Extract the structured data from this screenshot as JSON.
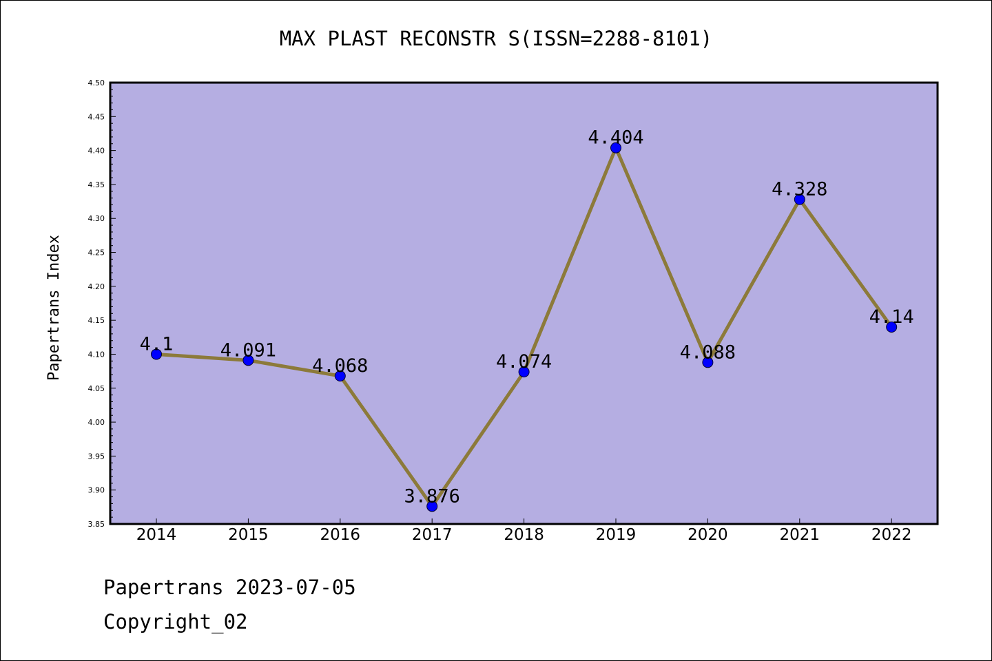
{
  "chart_data": {
    "type": "line",
    "title": "MAX PLAST RECONSTR S(ISSN=2288-8101)",
    "xlabel": "",
    "ylabel": "Papertrans Index",
    "categories": [
      "2014",
      "2015",
      "2016",
      "2017",
      "2018",
      "2019",
      "2020",
      "2021",
      "2022"
    ],
    "values": [
      4.1,
      4.091,
      4.068,
      3.876,
      4.074,
      4.404,
      4.088,
      4.328,
      4.14
    ],
    "value_labels": [
      "4.1",
      "4.091",
      "4.068",
      "3.876",
      "4.074",
      "4.404",
      "4.088",
      "4.328",
      "4.14"
    ],
    "ylim": [
      3.85,
      4.5
    ],
    "yticks": [
      "3.85",
      "3.90",
      "3.95",
      "4.00",
      "4.05",
      "4.10",
      "4.15",
      "4.20",
      "4.25",
      "4.30",
      "4.35",
      "4.40",
      "4.45",
      "4.50"
    ],
    "grid": false,
    "colors": {
      "plot_background": "#b5aee2",
      "line": "#8c7a3a",
      "marker": "#0000ff"
    }
  },
  "footer": {
    "date_text": "Papertrans 2023-07-05",
    "copyright_text": "Copyright_02"
  }
}
